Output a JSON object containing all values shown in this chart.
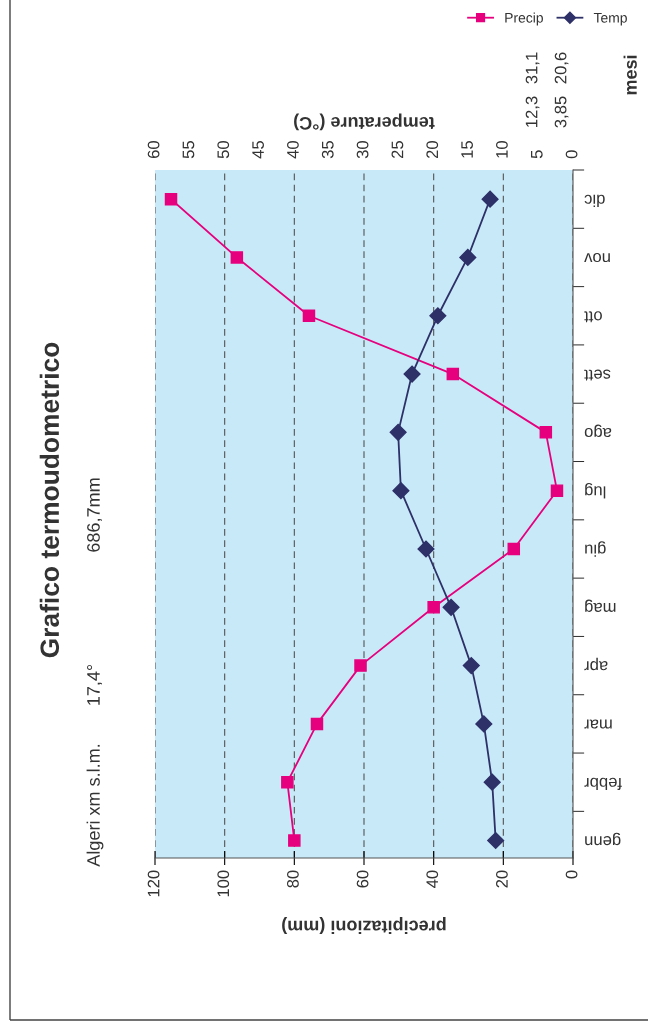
{
  "chart_data": {
    "type": "line",
    "orientation": "horizontal",
    "title": "Grafico termoudometrico",
    "categories": [
      "dic",
      "nov",
      "ott",
      "sett",
      "ago",
      "lug",
      "giu",
      "mag",
      "apr",
      "mar",
      "febbr",
      "genn"
    ],
    "series": [
      {
        "name": "Precip",
        "color": "#e6007e",
        "marker": "square",
        "values": [
          115.4,
          96.5,
          75.8,
          34.5,
          7.8,
          4.6,
          17,
          40,
          61,
          73.5,
          82,
          80
        ]
      },
      {
        "name": "Temp",
        "color": "#2e3168",
        "marker": "diamond",
        "axis": "x2",
        "values": [
          11.9,
          15.1,
          19.4,
          23.1,
          25.1,
          24.7,
          21.1,
          17.5,
          14.6,
          12.8,
          11.6,
          11.1
        ]
      }
    ],
    "ylabel": "mesi",
    "xlabel": "precipitazioni (mm)",
    "x2label": "temperature (°C)",
    "xlim": [
      120,
      0
    ],
    "xticks": [
      120,
      100,
      80,
      60,
      40,
      20,
      0
    ],
    "x2lim": [
      60,
      0
    ],
    "x2ticks": [
      60,
      55,
      50,
      45,
      40,
      35,
      30,
      25,
      20,
      15,
      10,
      5,
      0
    ],
    "grid": "x",
    "legend": "top right",
    "line_style": "solid",
    "annotations": [
      "Algeri xm s.l.m.",
      "17,4°",
      "686,7mm",
      "31,1",
      "20,6",
      "12,3",
      "3,85"
    ]
  }
}
